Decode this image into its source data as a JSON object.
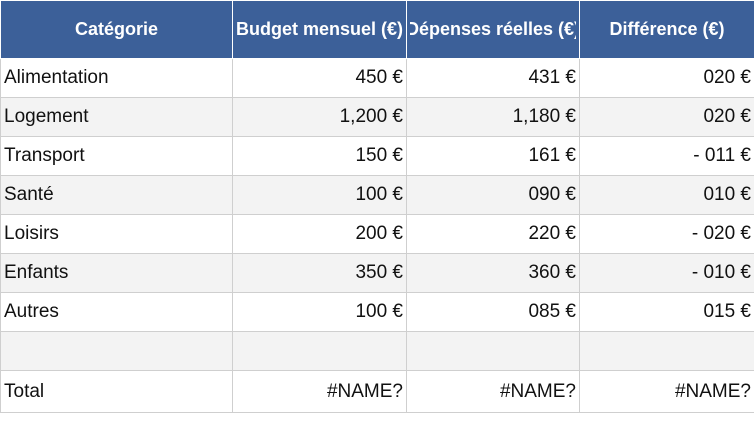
{
  "table": {
    "header": [
      "Catégorie",
      "Budget mensuel (€)",
      "Dépenses réelles (€)",
      "Différence (€)"
    ],
    "rows": [
      [
        "Alimentation",
        "450 €",
        "431 €",
        "020 €"
      ],
      [
        "Logement",
        "1,200 €",
        "1,180 €",
        "020 €"
      ],
      [
        "Transport",
        "150 €",
        "161 €",
        "- 011 €"
      ],
      [
        "Santé",
        "100 €",
        "090 €",
        "010 €"
      ],
      [
        "Loisirs",
        "200 €",
        "220 €",
        "- 020 €"
      ],
      [
        "Enfants",
        "350 €",
        "360 €",
        "- 010 €"
      ],
      [
        "Autres",
        "100 €",
        "085 €",
        "015 €"
      ]
    ],
    "total": [
      "Total",
      "#NAME?",
      "#NAME?",
      "#NAME?"
    ]
  }
}
